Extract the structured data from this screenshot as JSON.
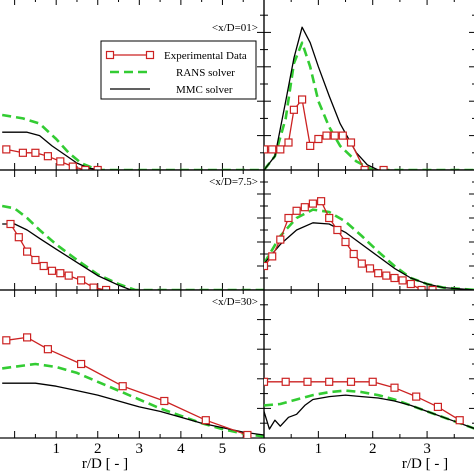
{
  "colors": {
    "experimental": "#cc2222",
    "rans": "#33cc33",
    "mmc": "#000000"
  },
  "legend": {
    "items": [
      {
        "label": "Experimental Data",
        "style": "exp"
      },
      {
        "label": "RANS solver",
        "style": "rans"
      },
      {
        "label": "MMC solver",
        "style": "mmc"
      }
    ]
  },
  "chart_data": [
    {
      "type": "line",
      "row": 0,
      "col": 0,
      "label": "",
      "xlim": [
        -0.4,
        6.0
      ],
      "ylim": [
        0,
        1
      ],
      "series": [
        {
          "name": "Experimental Data",
          "style": "exp",
          "x": [
            -0.2,
            0.2,
            0.5,
            0.8,
            1.1,
            1.4,
            1.7,
            2.0
          ],
          "y": [
            0.12,
            0.1,
            0.1,
            0.08,
            0.05,
            0.02,
            0.0,
            0.0
          ]
        },
        {
          "name": "RANS solver",
          "style": "rans",
          "x": [
            -0.3,
            0.2,
            0.6,
            1.0,
            1.3,
            1.6,
            2.0,
            2.5,
            3.0,
            6.0
          ],
          "y": [
            0.32,
            0.3,
            0.27,
            0.18,
            0.1,
            0.04,
            0.0,
            0.0,
            0.0,
            0.0
          ]
        },
        {
          "name": "MMC solver",
          "style": "mmc",
          "x": [
            -0.3,
            0.3,
            0.6,
            0.9,
            1.2,
            1.5,
            1.8,
            2.1,
            6.0
          ],
          "y": [
            0.22,
            0.22,
            0.2,
            0.14,
            0.09,
            0.04,
            0.01,
            0.0,
            0.0
          ]
        }
      ]
    },
    {
      "type": "line",
      "row": 0,
      "col": 1,
      "label": "<x/D=01>",
      "xlim": [
        0,
        3.9
      ],
      "ylim": [
        0,
        1
      ],
      "series": [
        {
          "name": "Experimental Data",
          "style": "exp",
          "x": [
            0.0,
            0.15,
            0.3,
            0.45,
            0.55,
            0.7,
            0.85,
            1.0,
            1.15,
            1.3,
            1.45,
            1.6,
            1.85,
            2.2
          ],
          "y": [
            0.12,
            0.12,
            0.12,
            0.16,
            0.35,
            0.41,
            0.14,
            0.18,
            0.2,
            0.2,
            0.2,
            0.16,
            0.0,
            0.0
          ]
        },
        {
          "name": "RANS solver",
          "style": "rans",
          "x": [
            0.0,
            0.2,
            0.4,
            0.55,
            0.7,
            0.85,
            1.0,
            1.2,
            1.4,
            1.7,
            2.0,
            2.2,
            3.9
          ],
          "y": [
            0.0,
            0.08,
            0.3,
            0.62,
            0.74,
            0.6,
            0.4,
            0.25,
            0.14,
            0.05,
            0.0,
            0.0,
            0.0
          ]
        },
        {
          "name": "MMC solver",
          "style": "mmc",
          "x": [
            0.0,
            0.2,
            0.4,
            0.55,
            0.7,
            0.85,
            1.0,
            1.2,
            1.4,
            1.7,
            1.9,
            2.1,
            3.9
          ],
          "y": [
            0.0,
            0.08,
            0.4,
            0.65,
            0.83,
            0.74,
            0.6,
            0.43,
            0.27,
            0.1,
            0.03,
            0.0,
            0.0
          ]
        }
      ]
    },
    {
      "type": "line",
      "row": 1,
      "col": 0,
      "label": "<x/D=7.5>",
      "xlim": [
        -0.4,
        6.0
      ],
      "ylim": [
        0,
        1
      ],
      "series": [
        {
          "name": "Experimental Data",
          "style": "exp",
          "x": [
            -0.1,
            0.1,
            0.3,
            0.5,
            0.7,
            0.9,
            1.1,
            1.3,
            1.6,
            1.9,
            2.2
          ],
          "y": [
            0.55,
            0.44,
            0.32,
            0.25,
            0.2,
            0.16,
            0.14,
            0.12,
            0.08,
            0.02,
            0.0
          ]
        },
        {
          "name": "RANS solver",
          "style": "rans",
          "x": [
            -0.3,
            0.0,
            0.3,
            0.6,
            1.0,
            1.5,
            2.0,
            2.5,
            2.9,
            3.2,
            6.0
          ],
          "y": [
            0.7,
            0.68,
            0.6,
            0.5,
            0.38,
            0.25,
            0.13,
            0.05,
            0.0,
            0.0,
            0.0
          ]
        },
        {
          "name": "MMC solver",
          "style": "mmc",
          "x": [
            -0.3,
            0.0,
            0.3,
            0.6,
            1.0,
            1.5,
            2.0,
            2.5,
            2.8,
            6.0
          ],
          "y": [
            0.55,
            0.55,
            0.5,
            0.43,
            0.34,
            0.23,
            0.12,
            0.04,
            0.0,
            0.0
          ]
        }
      ]
    },
    {
      "type": "line",
      "row": 1,
      "col": 1,
      "label": "",
      "xlim": [
        0,
        3.9
      ],
      "ylim": [
        0,
        1
      ],
      "series": [
        {
          "name": "Experimental Data",
          "style": "exp",
          "x": [
            0.0,
            0.15,
            0.3,
            0.45,
            0.6,
            0.75,
            0.9,
            1.05,
            1.2,
            1.35,
            1.5,
            1.65,
            1.8,
            1.95,
            2.1,
            2.25,
            2.4,
            2.55,
            2.7,
            2.9,
            3.1
          ],
          "y": [
            0.2,
            0.28,
            0.42,
            0.6,
            0.66,
            0.69,
            0.72,
            0.74,
            0.6,
            0.5,
            0.4,
            0.3,
            0.22,
            0.18,
            0.14,
            0.12,
            0.1,
            0.08,
            0.05,
            0.0,
            0.0
          ]
        },
        {
          "name": "RANS solver",
          "style": "rans",
          "x": [
            0.0,
            0.3,
            0.6,
            0.9,
            1.2,
            1.5,
            1.8,
            2.1,
            2.4,
            2.7,
            3.0,
            3.3,
            3.9
          ],
          "y": [
            0.22,
            0.45,
            0.6,
            0.67,
            0.65,
            0.57,
            0.45,
            0.32,
            0.2,
            0.1,
            0.05,
            0.02,
            0.0
          ]
        },
        {
          "name": "MMC solver",
          "style": "mmc",
          "x": [
            0.0,
            0.3,
            0.6,
            0.9,
            1.2,
            1.5,
            1.8,
            2.1,
            2.4,
            2.7,
            3.0,
            3.3,
            3.9
          ],
          "y": [
            0.22,
            0.38,
            0.5,
            0.56,
            0.55,
            0.48,
            0.38,
            0.28,
            0.18,
            0.1,
            0.05,
            0.02,
            0.0
          ]
        }
      ]
    },
    {
      "type": "line",
      "row": 2,
      "col": 0,
      "label": "<x/D=30>",
      "xlim": [
        -0.4,
        6.0
      ],
      "ylim": [
        0,
        1
      ],
      "series": [
        {
          "name": "Experimental Data",
          "style": "exp",
          "x": [
            -0.2,
            0.3,
            0.8,
            1.6,
            2.6,
            3.6,
            4.6,
            5.6
          ],
          "y": [
            0.66,
            0.68,
            0.6,
            0.5,
            0.35,
            0.25,
            0.12,
            0.02
          ]
        },
        {
          "name": "RANS solver",
          "style": "rans",
          "x": [
            -0.3,
            0.5,
            1.0,
            1.5,
            2.0,
            2.5,
            3.0,
            3.5,
            4.0,
            4.5,
            5.0,
            5.5,
            6.0
          ],
          "y": [
            0.47,
            0.5,
            0.48,
            0.44,
            0.38,
            0.32,
            0.26,
            0.2,
            0.15,
            0.1,
            0.06,
            0.03,
            0.01
          ]
        },
        {
          "name": "MMC solver",
          "style": "mmc",
          "x": [
            -0.3,
            0.5,
            1.0,
            1.5,
            2.0,
            2.5,
            3.0,
            3.5,
            4.0,
            4.5,
            5.0,
            5.5,
            6.0
          ],
          "y": [
            0.37,
            0.37,
            0.35,
            0.32,
            0.29,
            0.25,
            0.21,
            0.18,
            0.14,
            0.1,
            0.07,
            0.04,
            0.02
          ]
        }
      ]
    },
    {
      "type": "line",
      "row": 2,
      "col": 1,
      "label": "",
      "xlim": [
        0,
        3.9
      ],
      "ylim": [
        0,
        1
      ],
      "series": [
        {
          "name": "Experimental Data",
          "style": "exp",
          "x": [
            0.0,
            0.4,
            0.8,
            1.2,
            1.6,
            2.0,
            2.4,
            2.8,
            3.2,
            3.6
          ],
          "y": [
            0.38,
            0.38,
            0.38,
            0.38,
            0.38,
            0.38,
            0.34,
            0.28,
            0.21,
            0.12
          ]
        },
        {
          "name": "RANS solver",
          "style": "rans",
          "x": [
            0.0,
            0.3,
            0.6,
            0.9,
            1.2,
            1.5,
            1.8,
            2.1,
            2.4,
            2.7,
            3.0,
            3.3,
            3.6,
            3.9
          ],
          "y": [
            0.22,
            0.23,
            0.26,
            0.29,
            0.31,
            0.32,
            0.31,
            0.29,
            0.26,
            0.22,
            0.18,
            0.14,
            0.1,
            0.06
          ]
        },
        {
          "name": "MMC solver",
          "style": "mmc",
          "x": [
            0.0,
            0.1,
            0.2,
            0.3,
            0.45,
            0.6,
            0.75,
            0.9,
            1.2,
            1.5,
            1.8,
            2.1,
            2.4,
            2.7,
            3.0,
            3.3,
            3.6,
            3.9
          ],
          "y": [
            0.18,
            0.06,
            0.12,
            0.08,
            0.14,
            0.16,
            0.22,
            0.26,
            0.28,
            0.29,
            0.28,
            0.27,
            0.25,
            0.22,
            0.18,
            0.14,
            0.1,
            0.06
          ]
        }
      ]
    }
  ],
  "ticks": {
    "left_x": [
      "1",
      "2",
      "3",
      "4",
      "5",
      "6"
    ],
    "right_x": [
      "1",
      "2",
      "3"
    ]
  },
  "xlabel": "r/D [ - ]"
}
